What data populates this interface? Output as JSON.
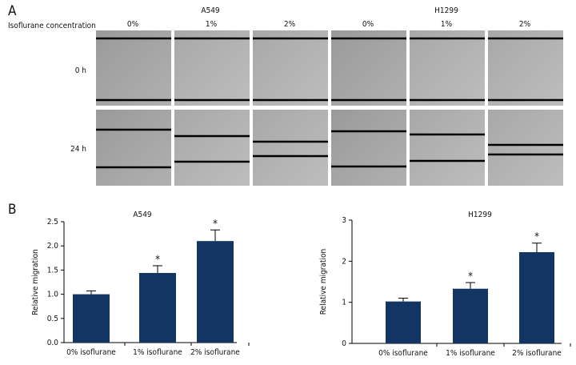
{
  "panel_labels": [
    "A",
    "B"
  ],
  "panel_a": {
    "row_header": "Isoflurane concentration",
    "groups": [
      {
        "name": "A549",
        "columns": [
          "0%",
          "1%",
          "2%"
        ]
      },
      {
        "name": "H1299",
        "columns": [
          "0%",
          "1%",
          "2%"
        ]
      }
    ],
    "rows": [
      "0 h",
      "24 h"
    ]
  },
  "chart_data": [
    {
      "type": "bar",
      "title": "A549",
      "y_label": "Relative migration",
      "categories": [
        "0% isoflurane",
        "1% isoflurane",
        "2% isoflurane"
      ],
      "values": [
        1.0,
        1.44,
        2.1
      ],
      "errors": [
        0.07,
        0.15,
        0.23
      ],
      "significance": [
        null,
        "*",
        "*"
      ],
      "color": "#133563",
      "ylim": [
        0,
        2.5
      ],
      "yticks": [
        {
          "value": 0,
          "label": "0.0"
        },
        0.5,
        {
          "value": 1,
          "label": "1.0"
        },
        1.5,
        {
          "value": 2,
          "label": "2.0"
        },
        2.5
      ]
    },
    {
      "type": "bar",
      "title": "H1299",
      "y_label": "Relative migration",
      "categories": [
        "0% isoflurane",
        "1% isoflurane",
        "2% isoflurane"
      ],
      "values": [
        1.02,
        1.33,
        2.22
      ],
      "errors": [
        0.08,
        0.15,
        0.22
      ],
      "significance": [
        null,
        "*",
        "*"
      ],
      "color": "#133563",
      "ylim": [
        0,
        3
      ],
      "yticks": [
        0,
        1,
        2,
        3
      ]
    }
  ]
}
